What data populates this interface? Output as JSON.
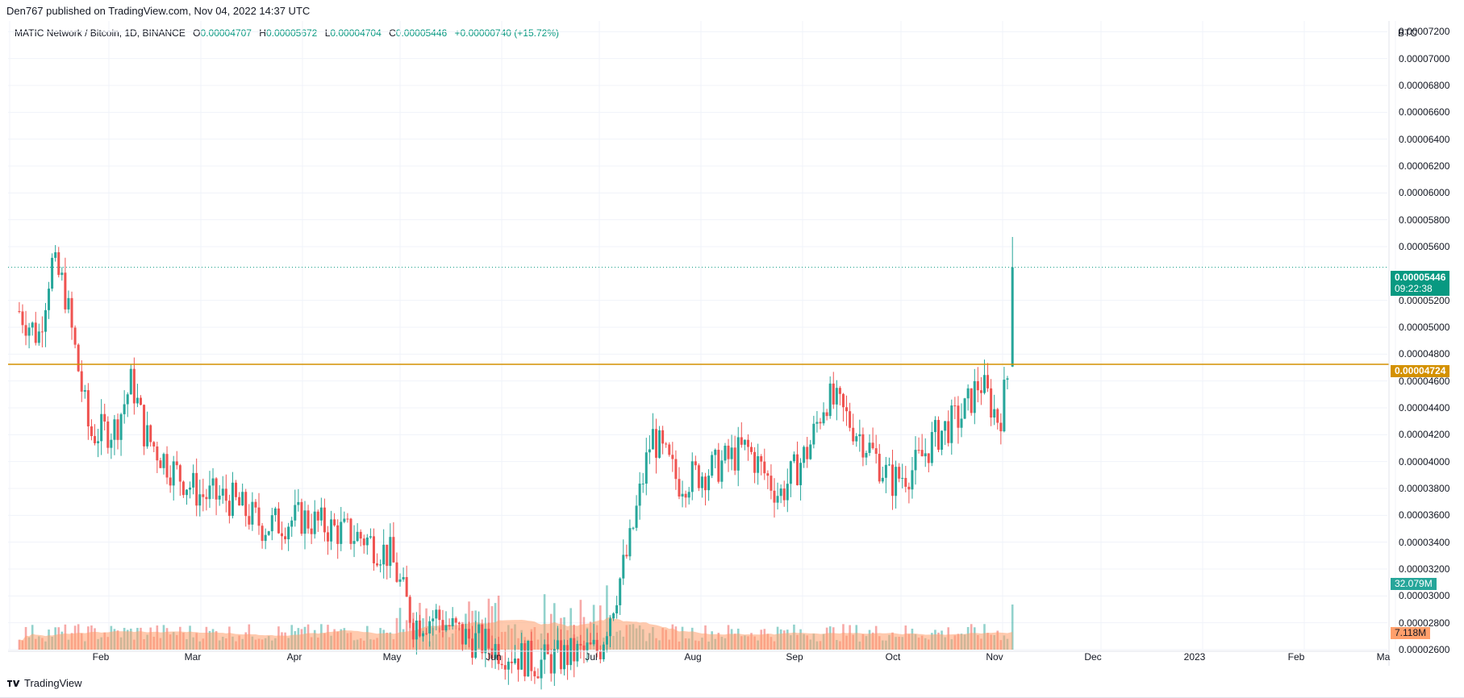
{
  "header": {
    "published_by": "Den767 published on TradingView.com, Nov 04, 2022 14:37 UTC"
  },
  "footer": {
    "brand": "TradingView"
  },
  "legend": {
    "symbol": "MATIC Network / Bitcoin, 1D, BINANCE",
    "open_label": "O",
    "open": "0.00004707",
    "high_label": "H",
    "high": "0.00005672",
    "low_label": "L",
    "low": "0.00004704",
    "close_label": "C",
    "close": "0.00005446",
    "change": "+0.00000740 (+15.72%)"
  },
  "price_axis": {
    "currency": "BTC",
    "ticks": [
      "0.00007200",
      "0.00007000",
      "0.00006800",
      "0.00006600",
      "0.00006400",
      "0.00006200",
      "0.00006000",
      "0.00005800",
      "0.00005600",
      "0.00005200",
      "0.00005000",
      "0.00004800",
      "0.00004600",
      "0.00004400",
      "0.00004200",
      "0.00004000",
      "0.00003800",
      "0.00003600",
      "0.00003400",
      "0.00003200",
      "0.00003000",
      "0.00002800",
      "0.00002600"
    ],
    "current_price_label": "0.00005446",
    "countdown_label": "09:22:38",
    "hline_label": "0.00004724",
    "volume_label": "32.079M",
    "volume_ma_label": "7.118M"
  },
  "time_axis": {
    "labels": [
      "Feb",
      "Mar",
      "Apr",
      "May",
      "Jun",
      "Jul",
      "Aug",
      "Sep",
      "Oct",
      "Nov",
      "Dec",
      "2023",
      "Feb",
      "Ma"
    ]
  },
  "colors": {
    "up": "#26a69a",
    "down": "#ef5350",
    "hline": "#d49100",
    "volume_ma": "#ff9f6b",
    "current_price": "#089981"
  },
  "chart_data": {
    "type": "candlestick",
    "title": "MATIC Network / Bitcoin, 1D, BINANCE",
    "y_unit": "BTC",
    "ylim": [
      2.6e-05,
      7.28e-05
    ],
    "horizontal_line": 4.724e-05,
    "last_price": 5.446e-05,
    "approx_close_path": [
      {
        "date": "2022-01-04",
        "close": 5.12e-05
      },
      {
        "date": "2022-01-10",
        "close": 4.93e-05
      },
      {
        "date": "2022-01-14",
        "close": 5.48e-05
      },
      {
        "date": "2022-01-18",
        "close": 5.3e-05
      },
      {
        "date": "2022-01-22",
        "close": 4.75e-05
      },
      {
        "date": "2022-01-26",
        "close": 4.2e-05
      },
      {
        "date": "2022-02-03",
        "close": 4.25e-05
      },
      {
        "date": "2022-02-08",
        "close": 4.6e-05
      },
      {
        "date": "2022-02-12",
        "close": 4.2e-05
      },
      {
        "date": "2022-02-20",
        "close": 3.95e-05
      },
      {
        "date": "2022-03-01",
        "close": 3.75e-05
      },
      {
        "date": "2022-03-10",
        "close": 3.72e-05
      },
      {
        "date": "2022-03-20",
        "close": 3.52e-05
      },
      {
        "date": "2022-04-01",
        "close": 3.58e-05
      },
      {
        "date": "2022-04-10",
        "close": 3.5e-05
      },
      {
        "date": "2022-04-20",
        "close": 3.43e-05
      },
      {
        "date": "2022-04-28",
        "close": 3.3e-05
      },
      {
        "date": "2022-05-05",
        "close": 2.8e-05
      },
      {
        "date": "2022-05-12",
        "close": 2.85e-05
      },
      {
        "date": "2022-05-20",
        "close": 2.7e-05
      },
      {
        "date": "2022-06-01",
        "close": 2.6e-05
      },
      {
        "date": "2022-06-12",
        "close": 2.5e-05
      },
      {
        "date": "2022-06-20",
        "close": 2.55e-05
      },
      {
        "date": "2022-07-01",
        "close": 2.6e-05
      },
      {
        "date": "2022-07-10",
        "close": 3.35e-05
      },
      {
        "date": "2022-07-17",
        "close": 4.2e-05
      },
      {
        "date": "2022-07-25",
        "close": 3.85e-05
      },
      {
        "date": "2022-08-05",
        "close": 3.95e-05
      },
      {
        "date": "2022-08-15",
        "close": 4.1e-05
      },
      {
        "date": "2022-08-25",
        "close": 3.75e-05
      },
      {
        "date": "2022-09-03",
        "close": 4.1e-05
      },
      {
        "date": "2022-09-08",
        "close": 4.48e-05
      },
      {
        "date": "2022-09-12",
        "close": 4.4e-05
      },
      {
        "date": "2022-09-20",
        "close": 4.15e-05
      },
      {
        "date": "2022-09-28",
        "close": 3.85e-05
      },
      {
        "date": "2022-10-05",
        "close": 3.95e-05
      },
      {
        "date": "2022-10-12",
        "close": 4.2e-05
      },
      {
        "date": "2022-10-20",
        "close": 4.35e-05
      },
      {
        "date": "2022-10-25",
        "close": 4.6e-05
      },
      {
        "date": "2022-10-31",
        "close": 4.3e-05
      },
      {
        "date": "2022-11-03",
        "close": 4.7e-05
      },
      {
        "date": "2022-11-04",
        "close": 5.446e-05
      }
    ],
    "volume_panel": {
      "last_volume": "32.079M",
      "volume_ma": "7.118M"
    }
  }
}
